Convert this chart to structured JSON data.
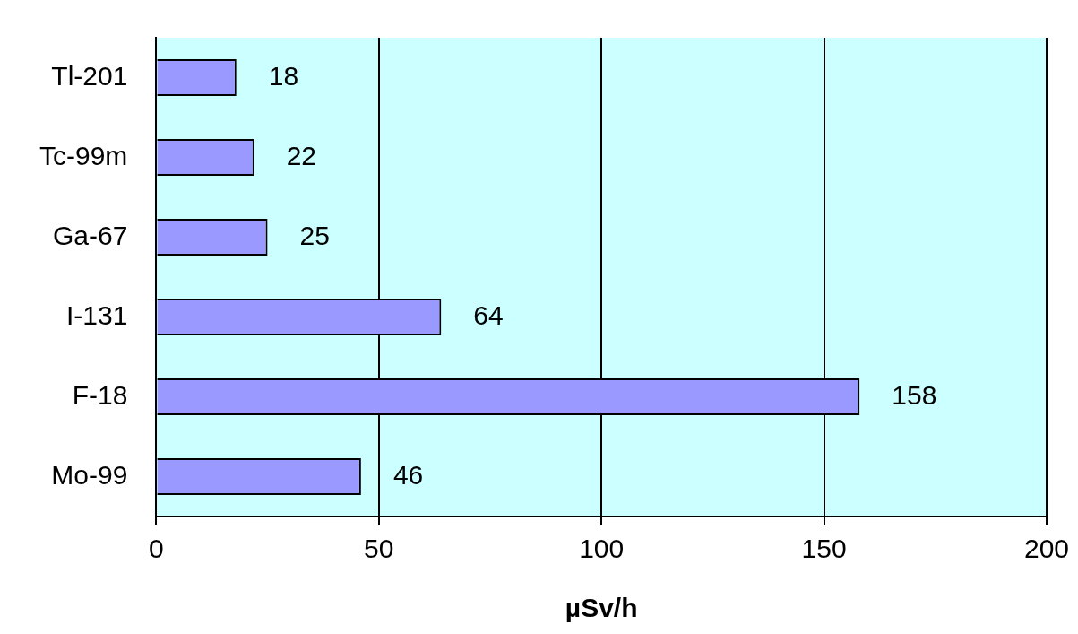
{
  "chart_data": {
    "type": "bar",
    "orientation": "horizontal",
    "xlabel": "µSv/h",
    "categories": [
      "Tl-201",
      "Tc-99m",
      "Ga-67",
      "I-131",
      "F-18",
      "Mo-99"
    ],
    "values": [
      18,
      22,
      25,
      64,
      158,
      46
    ],
    "color": "#9999ff",
    "xlim": [
      0,
      200
    ],
    "xticks": [
      0,
      50,
      100,
      150,
      200
    ],
    "grid": "x",
    "data_labels": true,
    "legend": false
  }
}
